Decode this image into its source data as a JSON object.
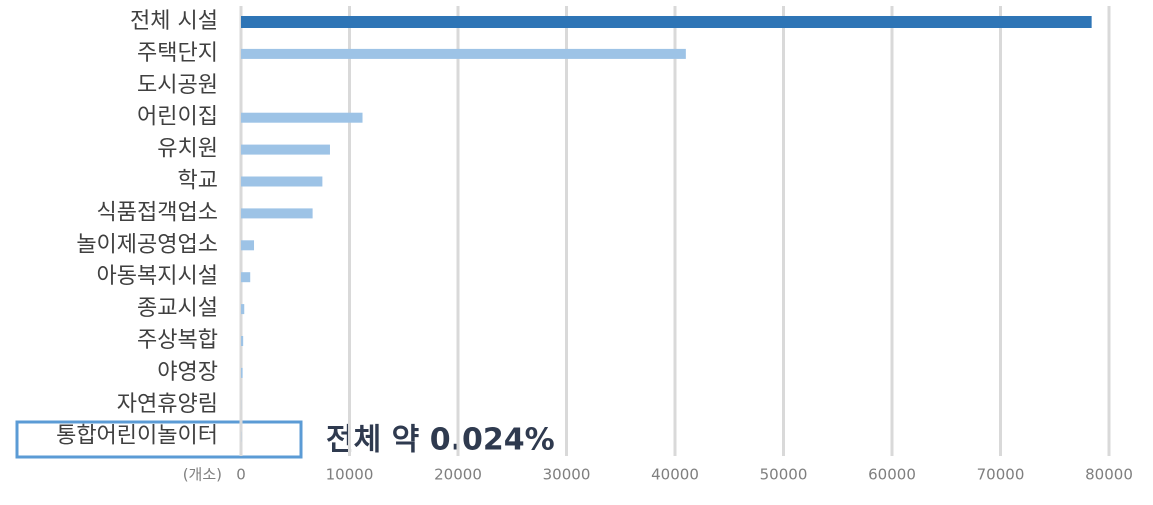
{
  "chart_data": {
    "type": "bar",
    "orientation": "horizontal",
    "categories": [
      "전체 시설",
      "주택단지",
      "도시공원",
      "어린이집",
      "유치원",
      "학교",
      "식품접객업소",
      "놀이제공영업소",
      "아동복지시설",
      "종교시설",
      "주상복합",
      "야영장",
      "자연휴양림",
      "통합어린이놀이터"
    ],
    "values": [
      78400,
      41000,
      0,
      11200,
      8200,
      7500,
      6600,
      1200,
      850,
      300,
      200,
      150,
      10,
      19
    ],
    "colors": [
      "#2e75b6",
      "#9dc3e6",
      "#9dc3e6",
      "#9dc3e6",
      "#9dc3e6",
      "#9dc3e6",
      "#9dc3e6",
      "#9dc3e6",
      "#9dc3e6",
      "#9dc3e6",
      "#9dc3e6",
      "#9dc3e6",
      "#9dc3e6",
      "#9dc3e6"
    ],
    "xlim": [
      0,
      80000
    ],
    "xticks": [
      0,
      10000,
      20000,
      30000,
      40000,
      50000,
      60000,
      70000,
      80000
    ],
    "x_label": "(개소)",
    "annotation": "전체 약 0.024%",
    "grid": true
  }
}
